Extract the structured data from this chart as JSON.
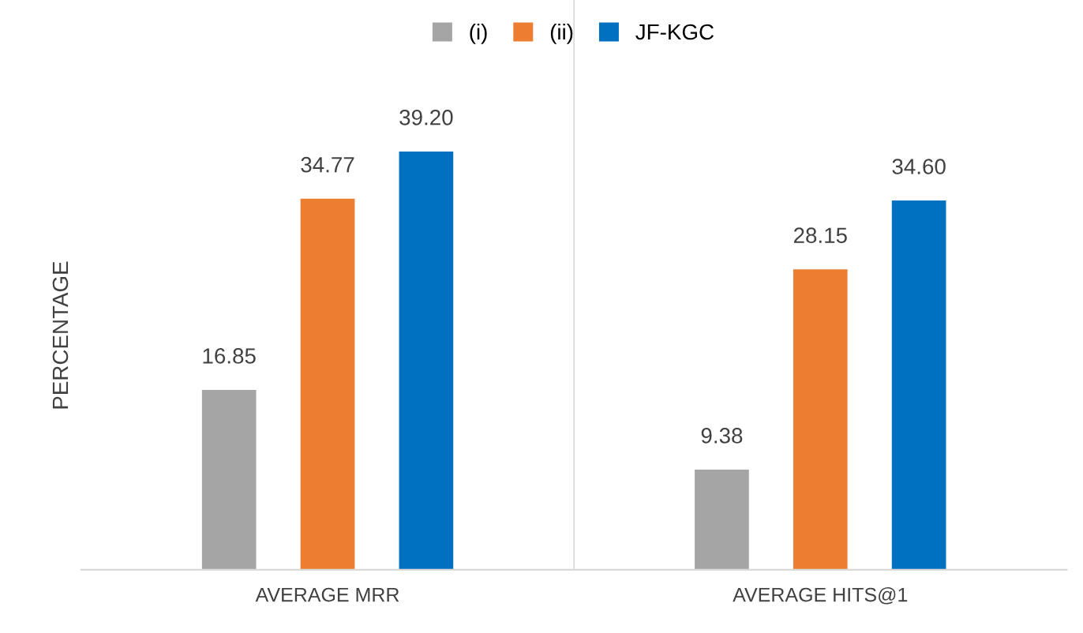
{
  "chart_data": {
    "type": "bar",
    "ylabel": "PERCENTAGE",
    "categories": [
      "AVERAGE MRR",
      "AVERAGE HITS@1"
    ],
    "series": [
      {
        "name": "(i)",
        "color": "#a5a5a5",
        "values": [
          16.85,
          9.38
        ],
        "value_labels": [
          "16.85",
          "9.38"
        ]
      },
      {
        "name": "(ii)",
        "color": "#ed7d31",
        "values": [
          34.77,
          28.15
        ],
        "value_labels": [
          "34.77",
          "28.15"
        ]
      },
      {
        "name": "JF-KGC",
        "color": "#0070c0",
        "values": [
          39.2,
          34.6
        ],
        "value_labels": [
          "39.20",
          "34.60"
        ]
      }
    ],
    "legend": "top",
    "grid": false
  }
}
